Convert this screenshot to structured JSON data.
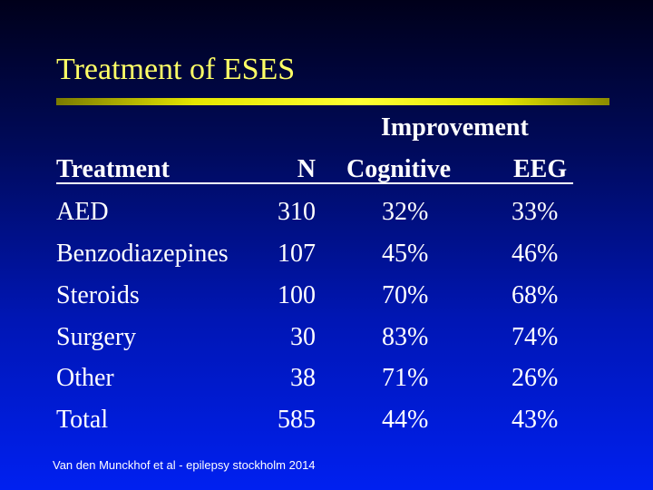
{
  "slide": {
    "title": "Treatment of ESES",
    "colors": {
      "title": "#ffff66",
      "rule": "#ffff33",
      "text": "#ffffff"
    }
  },
  "table": {
    "group_header": "Improvement",
    "headers": [
      "Treatment",
      "N",
      "Cognitive",
      "EEG"
    ],
    "rows": [
      [
        "AED",
        "310",
        "32%",
        "33%"
      ],
      [
        "Benzodiazepines",
        "107",
        "45%",
        "46%"
      ],
      [
        "Steroids",
        "100",
        "70%",
        "68%"
      ],
      [
        "Surgery",
        "30",
        "83%",
        "74%"
      ],
      [
        "Other",
        "38",
        "71%",
        "26%"
      ],
      [
        "Total",
        "585",
        "44%",
        "43%"
      ]
    ]
  },
  "footnote": "Van den Munckhof et al  - epilepsy stockholm 2014"
}
